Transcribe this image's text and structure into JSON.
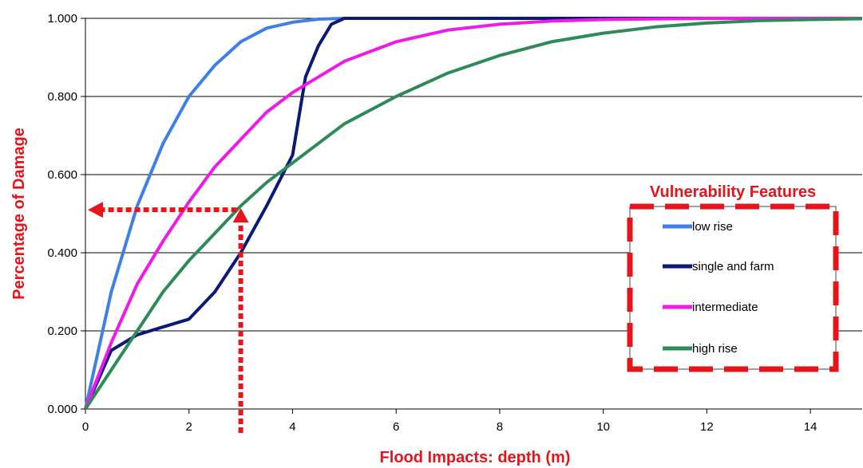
{
  "chart_data": {
    "type": "line",
    "xlabel": "Flood Impacts: depth (m)",
    "ylabel": "Percentage of Damage",
    "xlim": [
      0,
      15
    ],
    "ylim": [
      0,
      1
    ],
    "x_ticks": [
      "0",
      "2",
      "4",
      "6",
      "8",
      "10",
      "12",
      "14"
    ],
    "y_ticks": [
      "0.000",
      "0.200",
      "0.400",
      "0.600",
      "0.800",
      "1.000"
    ],
    "grid": "horizontal",
    "legend": {
      "title": "Vulnerability Features",
      "placement": "right"
    },
    "series": [
      {
        "name": "low rise",
        "color": "#3f7fe8",
        "x": [
          0,
          0.5,
          1,
          1.5,
          2,
          2.5,
          3,
          3.5,
          4,
          4.5,
          5,
          6,
          8,
          10,
          12,
          15
        ],
        "y": [
          0,
          0.3,
          0.52,
          0.68,
          0.8,
          0.88,
          0.94,
          0.975,
          0.99,
          0.998,
          1.0,
          1.0,
          1.0,
          1.0,
          1.0,
          1.0
        ]
      },
      {
        "name": "single and farm",
        "color": "#0b1a78",
        "x": [
          0,
          0.5,
          1,
          1.5,
          2,
          2.5,
          3,
          3.5,
          4,
          4.25,
          4.5,
          4.75,
          5,
          6,
          8,
          10,
          12,
          15
        ],
        "y": [
          0,
          0.15,
          0.19,
          0.21,
          0.23,
          0.3,
          0.4,
          0.52,
          0.65,
          0.85,
          0.93,
          0.985,
          1.0,
          1.0,
          1.0,
          1.0,
          1.0,
          1.0
        ]
      },
      {
        "name": "intermediate",
        "color": "#f01ae8",
        "x": [
          0,
          0.5,
          1,
          1.5,
          2,
          2.5,
          3,
          3.5,
          4,
          5,
          6,
          7,
          8,
          9,
          10,
          12,
          15
        ],
        "y": [
          0,
          0.17,
          0.32,
          0.43,
          0.53,
          0.62,
          0.69,
          0.76,
          0.81,
          0.89,
          0.94,
          0.97,
          0.985,
          0.993,
          0.997,
          1.0,
          1.0
        ]
      },
      {
        "name": "high rise",
        "color": "#2e8b57",
        "x": [
          0,
          0.5,
          1,
          1.5,
          2,
          2.5,
          3,
          3.5,
          4,
          5,
          6,
          7,
          8,
          9,
          10,
          11,
          12,
          13,
          14,
          15
        ],
        "y": [
          0,
          0.1,
          0.2,
          0.3,
          0.38,
          0.45,
          0.52,
          0.58,
          0.63,
          0.73,
          0.8,
          0.86,
          0.905,
          0.94,
          0.962,
          0.978,
          0.988,
          0.994,
          0.997,
          0.999
        ]
      }
    ],
    "annotations": [
      {
        "type": "dotted-arrow-path",
        "color": "#e8141b",
        "points": [
          [
            3,
            0
          ],
          [
            3,
            0.51
          ],
          [
            0,
            0.51
          ]
        ]
      }
    ]
  }
}
